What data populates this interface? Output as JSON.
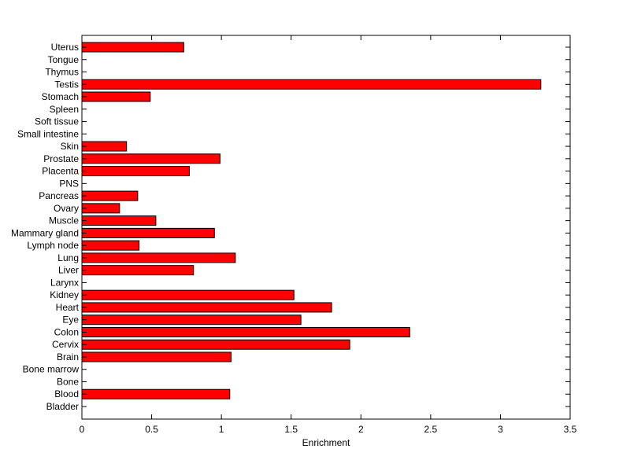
{
  "chart_data": {
    "type": "bar",
    "orientation": "horizontal",
    "xlabel": "Enrichment",
    "ylabel": "",
    "title": "",
    "xlim": [
      0,
      3.5
    ],
    "xticks": [
      "0",
      "0.5",
      "1",
      "1.5",
      "2",
      "2.5",
      "3",
      "3.5"
    ],
    "bar_color": "#ff0000",
    "categories": [
      "Bladder",
      "Blood",
      "Bone",
      "Bone marrow",
      "Brain",
      "Cervix",
      "Colon",
      "Eye",
      "Heart",
      "Kidney",
      "Larynx",
      "Liver",
      "Lung",
      "Lymph node",
      "Mammary gland",
      "Muscle",
      "Ovary",
      "Pancreas",
      "PNS",
      "Placenta",
      "Prostate",
      "Skin",
      "Small intestine",
      "Soft tissue",
      "Spleen",
      "Stomach",
      "Testis",
      "Thymus",
      "Tongue",
      "Uterus"
    ],
    "values": [
      0,
      1.06,
      0,
      0,
      1.07,
      1.92,
      2.35,
      1.57,
      1.79,
      1.52,
      0,
      0.8,
      1.1,
      0.41,
      0.95,
      0.53,
      0.27,
      0.4,
      0,
      0.77,
      0.99,
      0.32,
      0,
      0,
      0,
      0.49,
      3.29,
      0,
      0,
      0.73
    ],
    "grid": false,
    "legend": null
  }
}
